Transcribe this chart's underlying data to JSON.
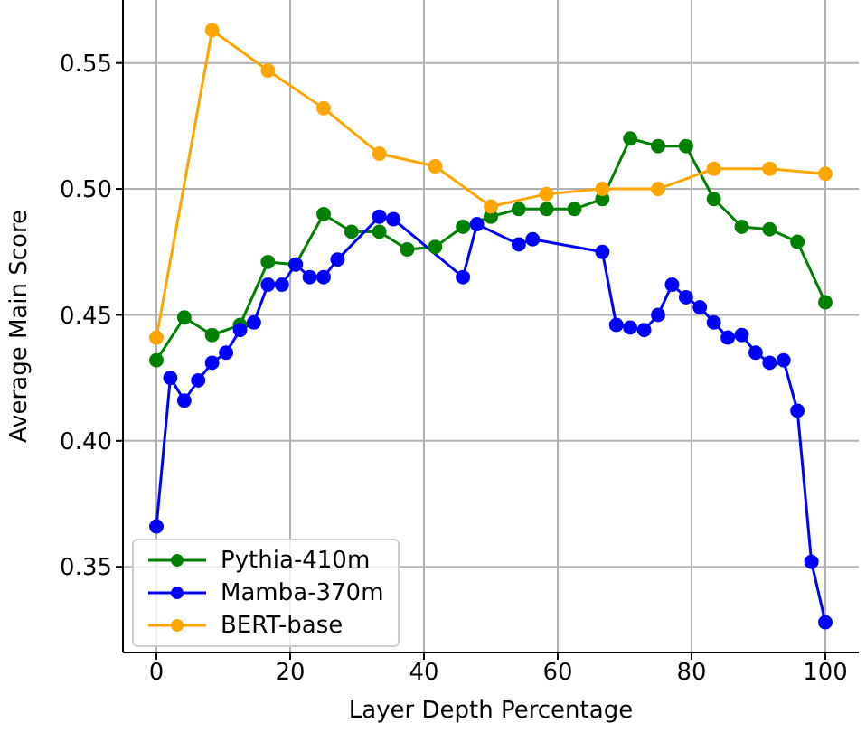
{
  "chart_data": {
    "type": "line",
    "xlabel": "Layer Depth Percentage",
    "ylabel": "Average Main Score",
    "xlim": [
      -5,
      105
    ],
    "xticks": [
      0,
      20,
      40,
      60,
      80,
      100
    ],
    "ylim": [
      0.316,
      0.575
    ],
    "yticks": [
      {
        "value": 0.35,
        "label": "0.35"
      },
      {
        "value": 0.4,
        "label": "0.40"
      },
      {
        "value": 0.45,
        "label": "0.45"
      },
      {
        "value": 0.5,
        "label": "0.50"
      },
      {
        "value": 0.55,
        "label": "0.55"
      }
    ],
    "grid": true,
    "legend": "bottom left",
    "marker": "circle",
    "line_style": "solid",
    "series": [
      {
        "name": "Pythia-410m",
        "color": "#008000",
        "x": [
          0,
          4.17,
          8.33,
          12.5,
          16.67,
          20.83,
          25,
          29.17,
          33.33,
          37.5,
          41.67,
          45.83,
          50,
          54.17,
          58.33,
          62.5,
          66.67,
          70.83,
          75,
          79.17,
          83.33,
          87.5,
          91.67,
          95.83,
          100
        ],
        "values": [
          0.432,
          0.449,
          0.442,
          0.446,
          0.471,
          0.47,
          0.49,
          0.483,
          0.483,
          0.476,
          0.477,
          0.485,
          0.489,
          0.492,
          0.492,
          0.492,
          0.496,
          0.52,
          0.517,
          0.517,
          0.496,
          0.485,
          0.484,
          0.479,
          0.455
        ]
      },
      {
        "name": "Mamba-370m",
        "color": "#0000ff",
        "x": [
          0,
          2.08,
          4.17,
          6.25,
          8.33,
          10.42,
          12.5,
          14.58,
          16.67,
          18.75,
          20.83,
          22.92,
          25,
          27.08,
          33.33,
          35.42,
          45.83,
          47.92,
          54.17,
          56.25,
          66.67,
          68.75,
          70.83,
          72.92,
          75,
          77.08,
          79.17,
          81.25,
          83.33,
          85.42,
          87.5,
          89.58,
          91.67,
          93.75,
          95.83,
          97.92,
          100
        ],
        "values": [
          0.366,
          0.425,
          0.416,
          0.424,
          0.431,
          0.435,
          0.444,
          0.447,
          0.462,
          0.462,
          0.47,
          0.465,
          0.465,
          0.472,
          0.489,
          0.488,
          0.465,
          0.486,
          0.478,
          0.48,
          0.475,
          0.446,
          0.445,
          0.444,
          0.45,
          0.462,
          0.457,
          0.453,
          0.447,
          0.441,
          0.442,
          0.435,
          0.431,
          0.432,
          0.412,
          0.352,
          0.328
        ]
      },
      {
        "name": "BERT-base",
        "color": "#ffa500",
        "x": [
          0,
          8.33,
          16.67,
          25,
          33.33,
          41.67,
          50,
          58.33,
          66.67,
          75,
          83.33,
          91.67,
          100
        ],
        "values": [
          0.441,
          0.563,
          0.547,
          0.532,
          0.514,
          0.509,
          0.493,
          0.498,
          0.5,
          0.5,
          0.508,
          0.508,
          0.506
        ]
      }
    ]
  }
}
